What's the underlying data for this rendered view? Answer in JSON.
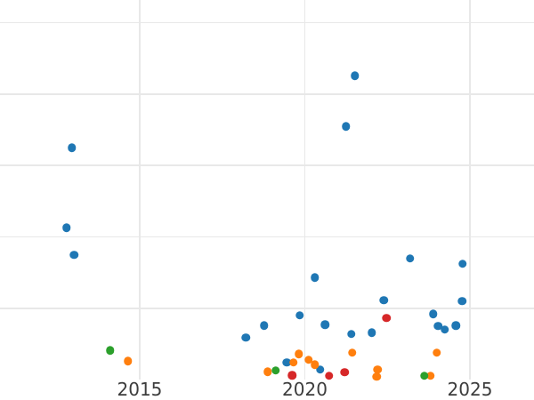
{
  "chart_data": {
    "type": "scatter",
    "title": "",
    "xlabel": "",
    "ylabel": "",
    "grid": true,
    "legend_position": "none",
    "x_tick_labels": [
      "2015",
      "2020",
      "2025"
    ],
    "x_tick_values": [
      2015,
      2020,
      2025
    ],
    "y_gridline_values": [
      1,
      2,
      3,
      4,
      5
    ],
    "x_range": [
      2010.77,
      2026.94
    ],
    "y_range": [
      0,
      5.32
    ],
    "colors": {
      "background": "#ffffff",
      "grid": "#e8e8e8",
      "tick_label": "#3d3d3d",
      "series_blue": "#1f77b4",
      "series_orange": "#ff7f0e",
      "series_green": "#2ca02c",
      "series_red": "#d62728"
    },
    "marker_diameter_px": 9.5,
    "series": [
      {
        "name": "blue",
        "color": "#1f77b4",
        "points": [
          [
            2012.95,
            3.25
          ],
          [
            2012.79,
            2.13
          ],
          [
            2013.01,
            1.75
          ],
          [
            2021.52,
            4.26
          ],
          [
            2021.25,
            3.55
          ],
          [
            2020.31,
            1.43
          ],
          [
            2023.19,
            1.7
          ],
          [
            2024.78,
            1.62
          ],
          [
            2022.39,
            1.11
          ],
          [
            2024.76,
            1.1
          ],
          [
            2019.85,
            0.9
          ],
          [
            2018.21,
            0.59
          ],
          [
            2018.77,
            0.76
          ],
          [
            2020.61,
            0.77
          ],
          [
            2021.41,
            0.64
          ],
          [
            2022.03,
            0.66
          ],
          [
            2019.45,
            0.24
          ],
          [
            2020.47,
            0.14
          ],
          [
            2023.89,
            0.92
          ],
          [
            2024.03,
            0.75
          ],
          [
            2024.24,
            0.7
          ],
          [
            2024.57,
            0.76
          ]
        ]
      },
      {
        "name": "orange",
        "color": "#ff7f0e",
        "points": [
          [
            2014.65,
            0.26
          ],
          [
            2018.88,
            0.11
          ],
          [
            2019.66,
            0.24
          ],
          [
            2019.82,
            0.36
          ],
          [
            2020.12,
            0.28
          ],
          [
            2020.31,
            0.21
          ],
          [
            2021.44,
            0.38
          ],
          [
            2022.2,
            0.14
          ],
          [
            2022.17,
            0.04
          ],
          [
            2024.0,
            0.38
          ],
          [
            2023.81,
            0.05
          ]
        ]
      },
      {
        "name": "green",
        "color": "#2ca02c",
        "points": [
          [
            2014.11,
            0.41
          ],
          [
            2019.12,
            0.13
          ],
          [
            2023.62,
            0.05
          ]
        ]
      },
      {
        "name": "red",
        "color": "#d62728",
        "points": [
          [
            2019.61,
            0.06
          ],
          [
            2020.74,
            0.05
          ],
          [
            2021.2,
            0.1
          ],
          [
            2022.47,
            0.86
          ]
        ]
      }
    ]
  }
}
